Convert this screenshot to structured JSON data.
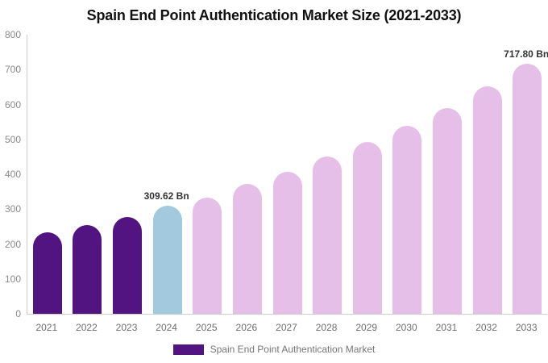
{
  "chart_data": {
    "type": "bar",
    "title": "Spain End Point Authentication Market Size (2021-2033)",
    "categories": [
      "2021",
      "2022",
      "2023",
      "2024",
      "2025",
      "2026",
      "2027",
      "2028",
      "2029",
      "2030",
      "2031",
      "2032",
      "2033"
    ],
    "values": [
      234,
      255,
      278,
      309.62,
      333,
      372,
      408,
      450,
      492,
      539,
      590,
      652,
      717.8
    ],
    "value_unit": "Bn",
    "xlabel": "",
    "ylabel": "",
    "ylim": [
      0,
      800
    ],
    "ytick_step": 100,
    "grid": false,
    "annotations": [
      {
        "category": "2024",
        "text": "309.62 Bn"
      },
      {
        "category": "2033",
        "text": "717.80 Bn"
      }
    ],
    "bar_colors": [
      "#511480",
      "#511480",
      "#511480",
      "#a3c9de",
      "#e5bfe8",
      "#e5bfe8",
      "#e5bfe8",
      "#e5bfe8",
      "#e5bfe8",
      "#e5bfe8",
      "#e5bfe8",
      "#e5bfe8",
      "#e5bfe8"
    ],
    "legend": {
      "position": "bottom",
      "items": [
        {
          "label": "Spain End Point Authentication Market",
          "swatch_color": "#511480"
        }
      ]
    },
    "colors": {
      "background": "#ffffff",
      "title_text": "#111111",
      "axis_line": "#cccccc",
      "ytick_text": "#8a8a8a",
      "xtick_text": "#6e6e6e",
      "legend_text": "#757575",
      "annotation_text": "#333333"
    }
  }
}
